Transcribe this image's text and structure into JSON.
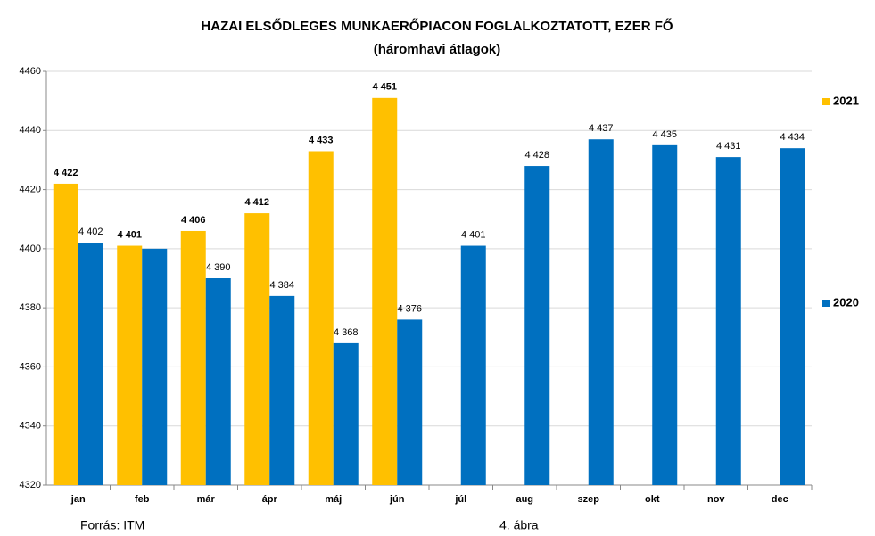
{
  "chart_data": {
    "type": "bar",
    "title": "HAZAI ELSŐDLEGES MUNKAERŐPIACON FOGLALKOZTATOTT,  EZER FŐ",
    "subtitle": "(háromhavi átlagok)",
    "categories": [
      "jan",
      "feb",
      "már",
      "ápr",
      "máj",
      "jún",
      "júl",
      "aug",
      "szep",
      "okt",
      "nov",
      "dec"
    ],
    "series": [
      {
        "name": "2021",
        "color": "#ffc000",
        "values": [
          4422,
          4401,
          4406,
          4412,
          4433,
          4451,
          null,
          null,
          null,
          null,
          null,
          null
        ],
        "value_labels": [
          "4 422",
          "4 401",
          "4 406",
          "4 412",
          "4 433",
          "4 451",
          null,
          null,
          null,
          null,
          null,
          null
        ]
      },
      {
        "name": "2020",
        "color": "#0070c0",
        "values": [
          4402,
          4400,
          4390,
          4384,
          4368,
          4376,
          4401,
          4428,
          4437,
          4435,
          4431,
          4434
        ],
        "value_labels": [
          "4 402",
          null,
          "4 390",
          "4 384",
          "4 368",
          "4 376",
          "4 401",
          "4 428",
          "4 437",
          "4 435",
          "4 431",
          "4 434"
        ]
      }
    ],
    "ylim": [
      4320,
      4460
    ],
    "yticks": [
      4320,
      4340,
      4360,
      4380,
      4400,
      4420,
      4440,
      4460
    ],
    "grid": true,
    "legend": "right",
    "source": "Forrás: ITM",
    "figure_label": "4. ábra"
  }
}
